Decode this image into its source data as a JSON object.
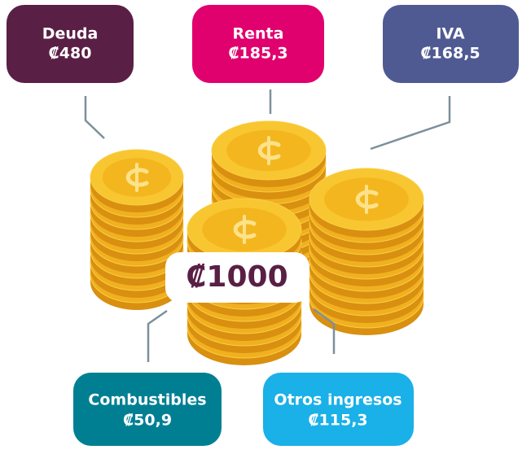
{
  "center": {
    "value": "₡1000"
  },
  "nodes": [
    {
      "label": "Deuda",
      "value": "₡480"
    },
    {
      "label": "Renta",
      "value": "₡185,3"
    },
    {
      "label": "IVA",
      "value": "₡168,5"
    },
    {
      "label": "Combustibles",
      "value": "₡50,9"
    },
    {
      "label": "Otros ingresos",
      "value": "₡115,3"
    }
  ]
}
